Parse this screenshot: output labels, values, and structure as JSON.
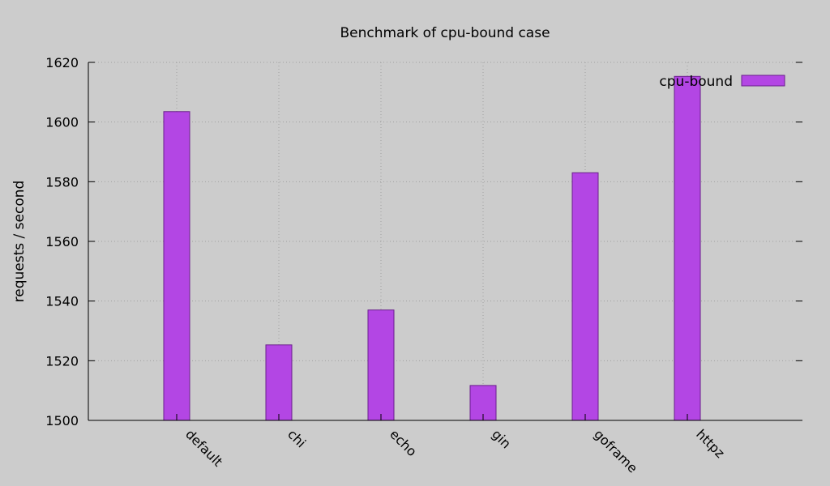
{
  "chart_data": {
    "type": "bar",
    "title": "Benchmark of cpu-bound case",
    "xlabel": "",
    "ylabel": "requests / second",
    "categories": [
      "default",
      "chi",
      "echo",
      "gin",
      "goframe",
      "httpz"
    ],
    "series": [
      {
        "name": "cpu-bound",
        "values": [
          1603.5,
          1525.3,
          1537.0,
          1511.7,
          1583.0,
          1615.3
        ],
        "color": "#b346e4"
      }
    ],
    "ylim": [
      1500,
      1620
    ],
    "yticks": [
      "1500",
      "1520",
      "1540",
      "1560",
      "1580",
      "1600",
      "1620"
    ],
    "grid": true,
    "legend_position": "top-right",
    "background_color": "#cccccc",
    "bar_edge_color": "#6a1f8c"
  }
}
